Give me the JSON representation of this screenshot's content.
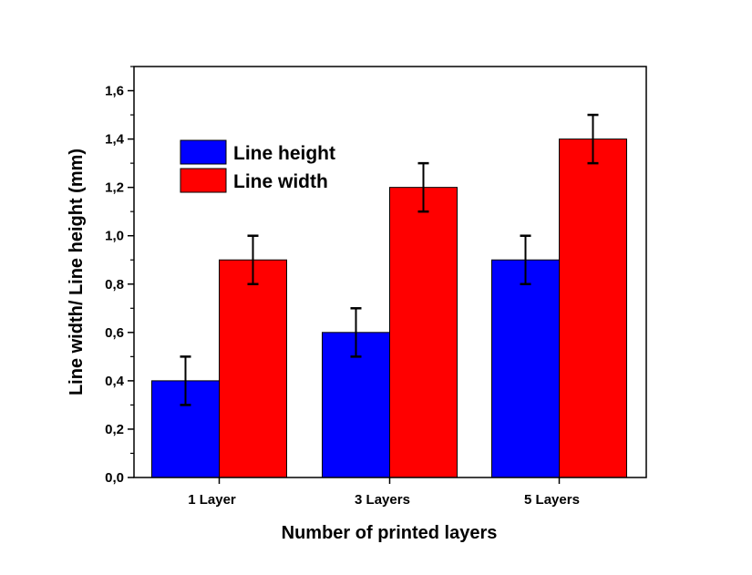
{
  "chart_data": {
    "type": "bar",
    "title": "",
    "xlabel": "Number of printed layers",
    "ylabel": "Line width/ Line height (mm)",
    "categories": [
      "1 Layer",
      "3 Layers",
      "5 Layers"
    ],
    "series": [
      {
        "name": "Line height",
        "color": "#0000ff",
        "values": [
          0.4,
          0.6,
          0.9
        ],
        "errors": [
          0.1,
          0.1,
          0.1
        ]
      },
      {
        "name": "Line width",
        "color": "#ff0000",
        "values": [
          0.9,
          1.2,
          1.4
        ],
        "errors": [
          0.1,
          0.1,
          0.1
        ]
      }
    ],
    "ylim": [
      0,
      1.7
    ],
    "yticks": [
      "0,0",
      "0,2",
      "0,4",
      "0,6",
      "0,8",
      "1,0",
      "1,2",
      "1,4",
      "1,6"
    ],
    "ytick_values": [
      0,
      0.2,
      0.4,
      0.6,
      0.8,
      1.0,
      1.2,
      1.4,
      1.6
    ],
    "grid": false,
    "legend": "top-left"
  }
}
